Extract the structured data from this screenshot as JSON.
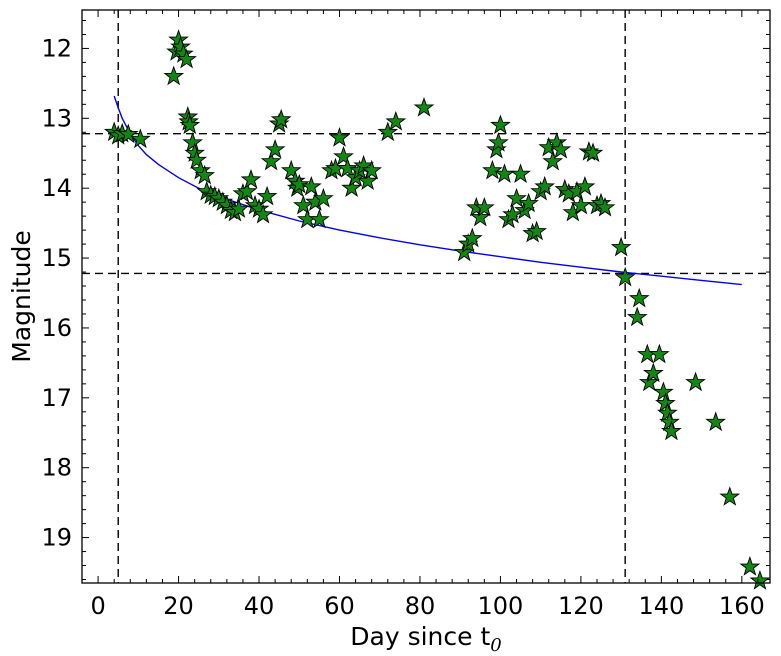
{
  "chart_data": {
    "type": "scatter",
    "xlabel": "Day since t",
    "xlabel_subscript": "0",
    "ylabel": "Magnitude",
    "xlim": [
      -4,
      167
    ],
    "ylim": [
      19.65,
      11.45
    ],
    "y_inverted": true,
    "xticks": [
      0,
      20,
      40,
      60,
      80,
      100,
      120,
      140,
      160
    ],
    "yticks": [
      12,
      13,
      14,
      15,
      16,
      17,
      18,
      19
    ],
    "grid": false,
    "marker": "star",
    "colors": {
      "marker_fill": "#118811",
      "marker_edge": "#000000",
      "fit_line": "#0000ff",
      "ref_lines": "#000000"
    },
    "reference_lines": {
      "vertical": [
        5,
        131
      ],
      "horizontal": [
        13.22,
        15.22
      ],
      "style": "dashed"
    },
    "fit_curve": {
      "color": "#0000ff",
      "points": [
        [
          4,
          12.68
        ],
        [
          5,
          12.85
        ],
        [
          6,
          13.0
        ],
        [
          8,
          13.22
        ],
        [
          10,
          13.39
        ],
        [
          12,
          13.52
        ],
        [
          15,
          13.66
        ],
        [
          20,
          13.85
        ],
        [
          25,
          14.0
        ],
        [
          30,
          14.12
        ],
        [
          40,
          14.31
        ],
        [
          50,
          14.47
        ],
        [
          60,
          14.6
        ],
        [
          70,
          14.71
        ],
        [
          80,
          14.81
        ],
        [
          90,
          14.9
        ],
        [
          100,
          14.98
        ],
        [
          110,
          15.06
        ],
        [
          120,
          15.13
        ],
        [
          130,
          15.2
        ],
        [
          140,
          15.26
        ],
        [
          150,
          15.32
        ],
        [
          160,
          15.38
        ]
      ]
    },
    "series": [
      {
        "points": [
          [
            4,
            13.2
          ],
          [
            5,
            13.25
          ],
          [
            6,
            13.22
          ],
          [
            7.5,
            13.23
          ],
          [
            10.5,
            13.3
          ],
          [
            18.8,
            12.4
          ],
          [
            19.5,
            12.05
          ],
          [
            20,
            11.88
          ],
          [
            20.5,
            11.98
          ],
          [
            21.2,
            12.08
          ],
          [
            22,
            12.16
          ],
          [
            22.3,
            12.98
          ],
          [
            22.5,
            13.05
          ],
          [
            22.8,
            13.1
          ],
          [
            23.5,
            13.35
          ],
          [
            24,
            13.5
          ],
          [
            24.5,
            13.6
          ],
          [
            25.5,
            13.75
          ],
          [
            26.5,
            13.82
          ],
          [
            27,
            14.05
          ],
          [
            28,
            14.1
          ],
          [
            29,
            14.12
          ],
          [
            30,
            14.15
          ],
          [
            31,
            14.2
          ],
          [
            32,
            14.25
          ],
          [
            33,
            14.32
          ],
          [
            34,
            14.35
          ],
          [
            35,
            14.3
          ],
          [
            36,
            14.08
          ],
          [
            37,
            14.05
          ],
          [
            38,
            13.88
          ],
          [
            39,
            14.25
          ],
          [
            40,
            14.3
          ],
          [
            41,
            14.38
          ],
          [
            42,
            14.12
          ],
          [
            43,
            13.62
          ],
          [
            44,
            13.45
          ],
          [
            45,
            13.08
          ],
          [
            45.5,
            13.02
          ],
          [
            48,
            13.75
          ],
          [
            49,
            13.9
          ],
          [
            49.5,
            14.0
          ],
          [
            50,
            13.95
          ],
          [
            51,
            14.25
          ],
          [
            52,
            14.45
          ],
          [
            53,
            13.98
          ],
          [
            54,
            14.2
          ],
          [
            55,
            14.45
          ],
          [
            56,
            14.15
          ],
          [
            58,
            13.75
          ],
          [
            59,
            13.72
          ],
          [
            60,
            13.28
          ],
          [
            61,
            13.55
          ],
          [
            62,
            13.72
          ],
          [
            63,
            14.0
          ],
          [
            64,
            13.85
          ],
          [
            65,
            13.75
          ],
          [
            66,
            13.68
          ],
          [
            67,
            13.9
          ],
          [
            68,
            13.75
          ],
          [
            72,
            13.2
          ],
          [
            74,
            13.05
          ],
          [
            81,
            12.85
          ],
          [
            91,
            14.92
          ],
          [
            92,
            14.8
          ],
          [
            93,
            14.72
          ],
          [
            94,
            14.28
          ],
          [
            95,
            14.42
          ],
          [
            96,
            14.28
          ],
          [
            98,
            13.75
          ],
          [
            99,
            13.45
          ],
          [
            99.5,
            13.35
          ],
          [
            100,
            13.1
          ],
          [
            101,
            13.8
          ],
          [
            102,
            14.45
          ],
          [
            103,
            14.38
          ],
          [
            104,
            14.15
          ],
          [
            105,
            13.8
          ],
          [
            106,
            14.32
          ],
          [
            107,
            14.22
          ],
          [
            108,
            14.65
          ],
          [
            109,
            14.62
          ],
          [
            110,
            14.05
          ],
          [
            111,
            13.98
          ],
          [
            112,
            13.42
          ],
          [
            113,
            13.62
          ],
          [
            114,
            13.35
          ],
          [
            115,
            13.45
          ],
          [
            116,
            14.02
          ],
          [
            117,
            14.08
          ],
          [
            118,
            14.35
          ],
          [
            119,
            14.05
          ],
          [
            120,
            14.25
          ],
          [
            121,
            13.98
          ],
          [
            122,
            13.48
          ],
          [
            123,
            13.5
          ],
          [
            124,
            14.25
          ],
          [
            125,
            14.22
          ],
          [
            126,
            14.28
          ],
          [
            130,
            14.85
          ],
          [
            131,
            15.28
          ],
          [
            134,
            15.85
          ],
          [
            134.5,
            15.58
          ],
          [
            136.5,
            16.38
          ],
          [
            137,
            16.78
          ],
          [
            138,
            16.65
          ],
          [
            139.5,
            16.38
          ],
          [
            140.5,
            16.92
          ],
          [
            141,
            17.08
          ],
          [
            141.5,
            17.22
          ],
          [
            142,
            17.35
          ],
          [
            142.5,
            17.48
          ],
          [
            148.5,
            16.78
          ],
          [
            153.5,
            17.35
          ],
          [
            157,
            18.42
          ],
          [
            162,
            19.42
          ],
          [
            164.5,
            19.62
          ]
        ]
      }
    ]
  }
}
